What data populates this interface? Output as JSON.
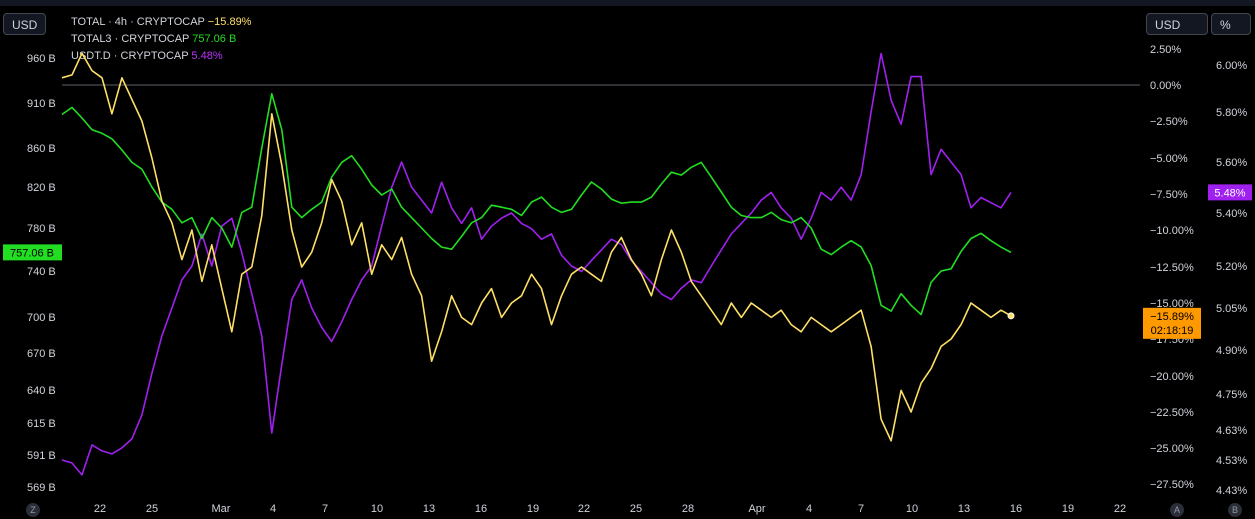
{
  "toolbar": {
    "currency_left": "USD",
    "currency_right": "USD",
    "percent_button": "%",
    "bottom_left_button": "Z",
    "bottom_right_a": "A",
    "bottom_right_b": "B"
  },
  "legend": [
    {
      "symbol": "TOTAL · 4h · CRYPTOCAP",
      "value": "−15.89%"
    },
    {
      "symbol": "TOTAL3 · CRYPTOCAP",
      "value": "757.06 B"
    },
    {
      "symbol": "USDT.D · CRYPTOCAP",
      "value": "5.48%"
    }
  ],
  "colors": {
    "total": "#ffe066",
    "total3": "#22dd22",
    "usdt": "#a020f0",
    "total_tag": "#ff9900",
    "total3_tag": "#22dd22",
    "usdt_tag": "#a020f0",
    "zero_line": "#5d606b"
  },
  "chart_data": {
    "type": "line",
    "x_ticks": [
      "22",
      "25",
      "Mar",
      "4",
      "7",
      "10",
      "13",
      "16",
      "19",
      "22",
      "25",
      "28",
      "Apr",
      "4",
      "7",
      "10",
      "13",
      "16",
      "19",
      "22"
    ],
    "left_axis": {
      "unit": "USD",
      "ticks": [
        "960 B",
        "910 B",
        "860 B",
        "820 B",
        "780 B",
        "740 B",
        "700 B",
        "670 B",
        "640 B",
        "615 B",
        "591 B",
        "569 B"
      ],
      "scale": "log",
      "ylim": [
        555,
        985
      ]
    },
    "right_axis_pct": {
      "ticks": [
        "2.50%",
        "0.00%",
        "−2.50%",
        "−5.00%",
        "−7.50%",
        "−10.00%",
        "−12.50%",
        "−15.00%",
        "−17.50%",
        "−20.00%",
        "−22.50%",
        "−25.00%",
        "−27.50%"
      ],
      "ylim": [
        -28.3,
        4.0
      ]
    },
    "right_axis_usdt": {
      "ticks": [
        "6.00%",
        "5.80%",
        "5.60%",
        "5.40%",
        "5.20%",
        "5.05%",
        "4.90%",
        "4.75%",
        "4.63%",
        "4.53%",
        "4.43%"
      ],
      "scale": "log"
    },
    "last_values": {
      "total": "−15.89%",
      "total_countdown": "02:18:19",
      "total3": "757.06 B",
      "usdt": "5.48%"
    },
    "series": [
      {
        "name": "TOTAL · 4h · CRYPTOCAP",
        "axis": "pct",
        "values": [
          [
            0.0,
            0.5
          ],
          [
            1.0,
            0.7
          ],
          [
            2.0,
            2.2
          ],
          [
            3.0,
            1.0
          ],
          [
            4.0,
            0.5
          ],
          [
            5.0,
            -2.0
          ],
          [
            6.0,
            0.5
          ],
          [
            7.0,
            -1.0
          ],
          [
            8.0,
            -2.5
          ],
          [
            9.0,
            -5.0
          ],
          [
            10.0,
            -8.0
          ],
          [
            11.0,
            -9.5
          ],
          [
            12.0,
            -12.0
          ],
          [
            13.0,
            -10.0
          ],
          [
            14.0,
            -13.5
          ],
          [
            15.0,
            -11.0
          ],
          [
            16.0,
            -14.0
          ],
          [
            17.0,
            -17.0
          ],
          [
            18.0,
            -13.0
          ],
          [
            19.0,
            -12.5
          ],
          [
            20.0,
            -9.0
          ],
          [
            21.0,
            -2.0
          ],
          [
            22.0,
            -5.5
          ],
          [
            23.0,
            -10.0
          ],
          [
            24.0,
            -12.5
          ],
          [
            25.0,
            -11.5
          ],
          [
            26.0,
            -9.5
          ],
          [
            27.0,
            -6.5
          ],
          [
            28.0,
            -8.0
          ],
          [
            29.0,
            -11.0
          ],
          [
            30.0,
            -9.5
          ],
          [
            31.0,
            -13.0
          ],
          [
            32.0,
            -11.0
          ],
          [
            33.0,
            -12.0
          ],
          [
            34.0,
            -10.5
          ],
          [
            35.0,
            -13.0
          ],
          [
            36.0,
            -14.5
          ],
          [
            37.0,
            -19.0
          ],
          [
            38.0,
            -17.0
          ],
          [
            39.0,
            -14.5
          ],
          [
            40.0,
            -16.0
          ],
          [
            41.0,
            -16.5
          ],
          [
            42.0,
            -15.0
          ],
          [
            43.0,
            -14.0
          ],
          [
            44.0,
            -16.0
          ],
          [
            45.0,
            -15.0
          ],
          [
            46.0,
            -14.5
          ],
          [
            47.0,
            -13.0
          ],
          [
            48.0,
            -14.0
          ],
          [
            49.0,
            -16.5
          ],
          [
            50.0,
            -14.5
          ],
          [
            51.0,
            -13.0
          ],
          [
            52.0,
            -12.5
          ],
          [
            53.0,
            -13.0
          ],
          [
            54.0,
            -13.5
          ],
          [
            55.0,
            -11.5
          ],
          [
            56.0,
            -10.5
          ],
          [
            57.0,
            -12.0
          ],
          [
            58.0,
            -13.0
          ],
          [
            59.0,
            -14.5
          ],
          [
            60.0,
            -12.0
          ],
          [
            61.0,
            -10.0
          ],
          [
            62.0,
            -11.5
          ],
          [
            63.0,
            -13.5
          ],
          [
            64.0,
            -14.5
          ],
          [
            65.0,
            -15.5
          ],
          [
            66.0,
            -16.5
          ],
          [
            67.0,
            -15.0
          ],
          [
            68.0,
            -16.0
          ],
          [
            69.0,
            -15.0
          ],
          [
            70.0,
            -15.5
          ],
          [
            71.0,
            -16.0
          ],
          [
            72.0,
            -15.5
          ],
          [
            73.0,
            -16.5
          ],
          [
            74.0,
            -17.0
          ],
          [
            75.0,
            -16.0
          ],
          [
            76.0,
            -16.5
          ],
          [
            77.0,
            -17.0
          ],
          [
            78.0,
            -16.5
          ],
          [
            79.0,
            -16.0
          ],
          [
            80.0,
            -15.5
          ],
          [
            81.0,
            -18.0
          ],
          [
            82.0,
            -23.0
          ],
          [
            83.0,
            -24.5
          ],
          [
            84.0,
            -21.0
          ],
          [
            85.0,
            -22.5
          ],
          [
            86.0,
            -20.5
          ],
          [
            87.0,
            -19.5
          ],
          [
            88.0,
            -18.0
          ],
          [
            89.0,
            -17.5
          ],
          [
            90.0,
            -16.5
          ],
          [
            91.0,
            -15.0
          ],
          [
            92.0,
            -15.5
          ],
          [
            93.0,
            -16.0
          ],
          [
            94.0,
            -15.5
          ],
          [
            95.0,
            -15.89
          ]
        ]
      },
      {
        "name": "TOTAL3 · CRYPTOCAP",
        "axis": "left",
        "values": [
          [
            0.0,
            897
          ],
          [
            1.0,
            905
          ],
          [
            2.0,
            893
          ],
          [
            3.0,
            880
          ],
          [
            4.0,
            876
          ],
          [
            5.0,
            870
          ],
          [
            6.0,
            858
          ],
          [
            7.0,
            845
          ],
          [
            8.0,
            838
          ],
          [
            9.0,
            820
          ],
          [
            10.0,
            805
          ],
          [
            11.0,
            798
          ],
          [
            12.0,
            785
          ],
          [
            13.0,
            790
          ],
          [
            14.0,
            770
          ],
          [
            15.0,
            790
          ],
          [
            16.0,
            780
          ],
          [
            17.0,
            762
          ],
          [
            18.0,
            795
          ],
          [
            19.0,
            800
          ],
          [
            20.0,
            860
          ],
          [
            21.0,
            920
          ],
          [
            22.0,
            880
          ],
          [
            23.0,
            800
          ],
          [
            24.0,
            790
          ],
          [
            25.0,
            798
          ],
          [
            26.0,
            805
          ],
          [
            27.0,
            830
          ],
          [
            28.0,
            845
          ],
          [
            29.0,
            852
          ],
          [
            30.0,
            838
          ],
          [
            31.0,
            822
          ],
          [
            32.0,
            812
          ],
          [
            33.0,
            818
          ],
          [
            34.0,
            800
          ],
          [
            35.0,
            790
          ],
          [
            36.0,
            780
          ],
          [
            37.0,
            770
          ],
          [
            38.0,
            762
          ],
          [
            39.0,
            760
          ],
          [
            40.0,
            772
          ],
          [
            41.0,
            785
          ],
          [
            42.0,
            790
          ],
          [
            43.0,
            802
          ],
          [
            44.0,
            800
          ],
          [
            45.0,
            798
          ],
          [
            46.0,
            792
          ],
          [
            47.0,
            805
          ],
          [
            48.0,
            810
          ],
          [
            49.0,
            800
          ],
          [
            50.0,
            795
          ],
          [
            51.0,
            798
          ],
          [
            52.0,
            812
          ],
          [
            53.0,
            825
          ],
          [
            54.0,
            818
          ],
          [
            55.0,
            808
          ],
          [
            56.0,
            804
          ],
          [
            57.0,
            805
          ],
          [
            58.0,
            805
          ],
          [
            59.0,
            810
          ],
          [
            60.0,
            823
          ],
          [
            61.0,
            835
          ],
          [
            62.0,
            832
          ],
          [
            63.0,
            840
          ],
          [
            64.0,
            845
          ],
          [
            65.0,
            830
          ],
          [
            66.0,
            815
          ],
          [
            67.0,
            800
          ],
          [
            68.0,
            792
          ],
          [
            69.0,
            790
          ],
          [
            70.0,
            790
          ],
          [
            71.0,
            795
          ],
          [
            72.0,
            788
          ],
          [
            73.0,
            785
          ],
          [
            74.0,
            790
          ],
          [
            75.0,
            780
          ],
          [
            76.0,
            760
          ],
          [
            77.0,
            755
          ],
          [
            78.0,
            762
          ],
          [
            79.0,
            768
          ],
          [
            80.0,
            762
          ],
          [
            81.0,
            745
          ],
          [
            82.0,
            710
          ],
          [
            83.0,
            705
          ],
          [
            84.0,
            720
          ],
          [
            85.0,
            710
          ],
          [
            86.0,
            702
          ],
          [
            87.0,
            730
          ],
          [
            88.0,
            740
          ],
          [
            89.0,
            742
          ],
          [
            90.0,
            758
          ],
          [
            91.0,
            770
          ],
          [
            92.0,
            775
          ],
          [
            93.0,
            768
          ],
          [
            94.0,
            762
          ],
          [
            95.0,
            757.06
          ]
        ]
      },
      {
        "name": "USDT.D · CRYPTOCAP",
        "axis": "usdt",
        "values": [
          [
            0.0,
            4.53
          ],
          [
            1.0,
            4.52
          ],
          [
            2.0,
            4.48
          ],
          [
            3.0,
            4.58
          ],
          [
            4.0,
            4.56
          ],
          [
            5.0,
            4.55
          ],
          [
            6.0,
            4.57
          ],
          [
            7.0,
            4.6
          ],
          [
            8.0,
            4.68
          ],
          [
            9.0,
            4.82
          ],
          [
            10.0,
            4.95
          ],
          [
            11.0,
            5.05
          ],
          [
            12.0,
            5.15
          ],
          [
            13.0,
            5.2
          ],
          [
            14.0,
            5.32
          ],
          [
            15.0,
            5.2
          ],
          [
            16.0,
            5.35
          ],
          [
            17.0,
            5.38
          ],
          [
            18.0,
            5.25
          ],
          [
            19.0,
            5.1
          ],
          [
            20.0,
            4.95
          ],
          [
            21.0,
            4.62
          ],
          [
            22.0,
            4.85
          ],
          [
            23.0,
            5.08
          ],
          [
            24.0,
            5.15
          ],
          [
            25.0,
            5.05
          ],
          [
            26.0,
            4.98
          ],
          [
            27.0,
            4.93
          ],
          [
            28.0,
            5.0
          ],
          [
            29.0,
            5.08
          ],
          [
            30.0,
            5.15
          ],
          [
            31.0,
            5.2
          ],
          [
            32.0,
            5.35
          ],
          [
            33.0,
            5.5
          ],
          [
            34.0,
            5.6
          ],
          [
            35.0,
            5.5
          ],
          [
            36.0,
            5.45
          ],
          [
            37.0,
            5.4
          ],
          [
            38.0,
            5.52
          ],
          [
            39.0,
            5.42
          ],
          [
            40.0,
            5.36
          ],
          [
            41.0,
            5.42
          ],
          [
            42.0,
            5.3
          ],
          [
            43.0,
            5.35
          ],
          [
            44.0,
            5.38
          ],
          [
            45.0,
            5.4
          ],
          [
            46.0,
            5.36
          ],
          [
            47.0,
            5.34
          ],
          [
            48.0,
            5.3
          ],
          [
            49.0,
            5.32
          ],
          [
            50.0,
            5.24
          ],
          [
            51.0,
            5.2
          ],
          [
            52.0,
            5.18
          ],
          [
            53.0,
            5.22
          ],
          [
            54.0,
            5.26
          ],
          [
            55.0,
            5.3
          ],
          [
            56.0,
            5.28
          ],
          [
            57.0,
            5.22
          ],
          [
            58.0,
            5.18
          ],
          [
            59.0,
            5.14
          ],
          [
            60.0,
            5.1
          ],
          [
            61.0,
            5.08
          ],
          [
            62.0,
            5.12
          ],
          [
            63.0,
            5.15
          ],
          [
            64.0,
            5.14
          ],
          [
            65.0,
            5.2
          ],
          [
            66.0,
            5.26
          ],
          [
            67.0,
            5.32
          ],
          [
            68.0,
            5.36
          ],
          [
            69.0,
            5.4
          ],
          [
            70.0,
            5.45
          ],
          [
            71.0,
            5.48
          ],
          [
            72.0,
            5.42
          ],
          [
            73.0,
            5.38
          ],
          [
            74.0,
            5.3
          ],
          [
            75.0,
            5.38
          ],
          [
            76.0,
            5.48
          ],
          [
            77.0,
            5.45
          ],
          [
            78.0,
            5.5
          ],
          [
            79.0,
            5.45
          ],
          [
            80.0,
            5.55
          ],
          [
            81.0,
            5.8
          ],
          [
            82.0,
            6.05
          ],
          [
            83.0,
            5.85
          ],
          [
            84.0,
            5.75
          ],
          [
            85.0,
            5.95
          ],
          [
            86.0,
            5.95
          ],
          [
            87.0,
            5.55
          ],
          [
            88.0,
            5.65
          ],
          [
            89.0,
            5.6
          ],
          [
            90.0,
            5.55
          ],
          [
            91.0,
            5.42
          ],
          [
            92.0,
            5.46
          ],
          [
            93.0,
            5.44
          ],
          [
            94.0,
            5.42
          ],
          [
            95.0,
            5.48
          ]
        ]
      }
    ]
  }
}
